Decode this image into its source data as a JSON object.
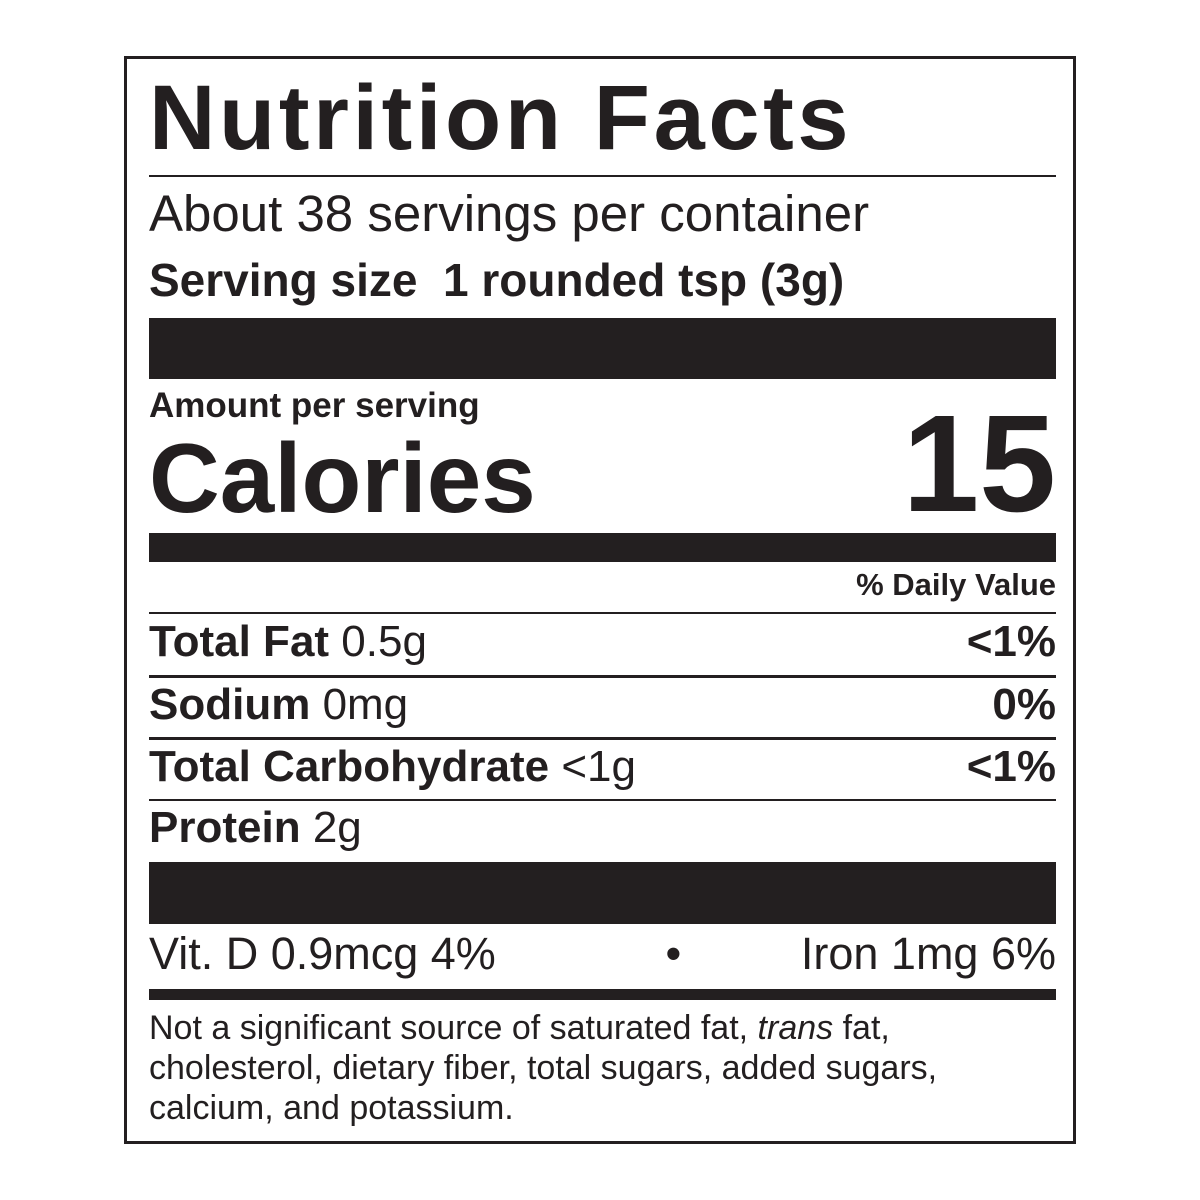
{
  "title": "Nutrition Facts",
  "servings_per_container": "About 38 servings per container",
  "serving_size": {
    "label": "Serving size",
    "value": "1 rounded tsp (3g)"
  },
  "amount_per_serving": "Amount per serving",
  "calories": {
    "label": "Calories",
    "value": "15"
  },
  "daily_value_header": "% Daily Value",
  "nutrients": [
    {
      "name": "Total Fat",
      "amount": "0.5g",
      "dv": "<1%"
    },
    {
      "name": "Sodium",
      "amount": "0mg",
      "dv": "0%"
    },
    {
      "name": "Total Carbohydrate",
      "amount": "<1g",
      "dv": "<1%"
    },
    {
      "name": "Protein",
      "amount": "2g",
      "dv": ""
    }
  ],
  "vitamins": {
    "vit_d": "Vit. D 0.9mcg 4%",
    "separator": "•",
    "iron": "Iron 1mg 6%"
  },
  "footnote": {
    "part1": "Not a significant source of saturated fat, ",
    "italic": "trans",
    "part2": " fat, cholesterol, dietary fiber, total sugars, added sugars, calcium, and potassium."
  }
}
